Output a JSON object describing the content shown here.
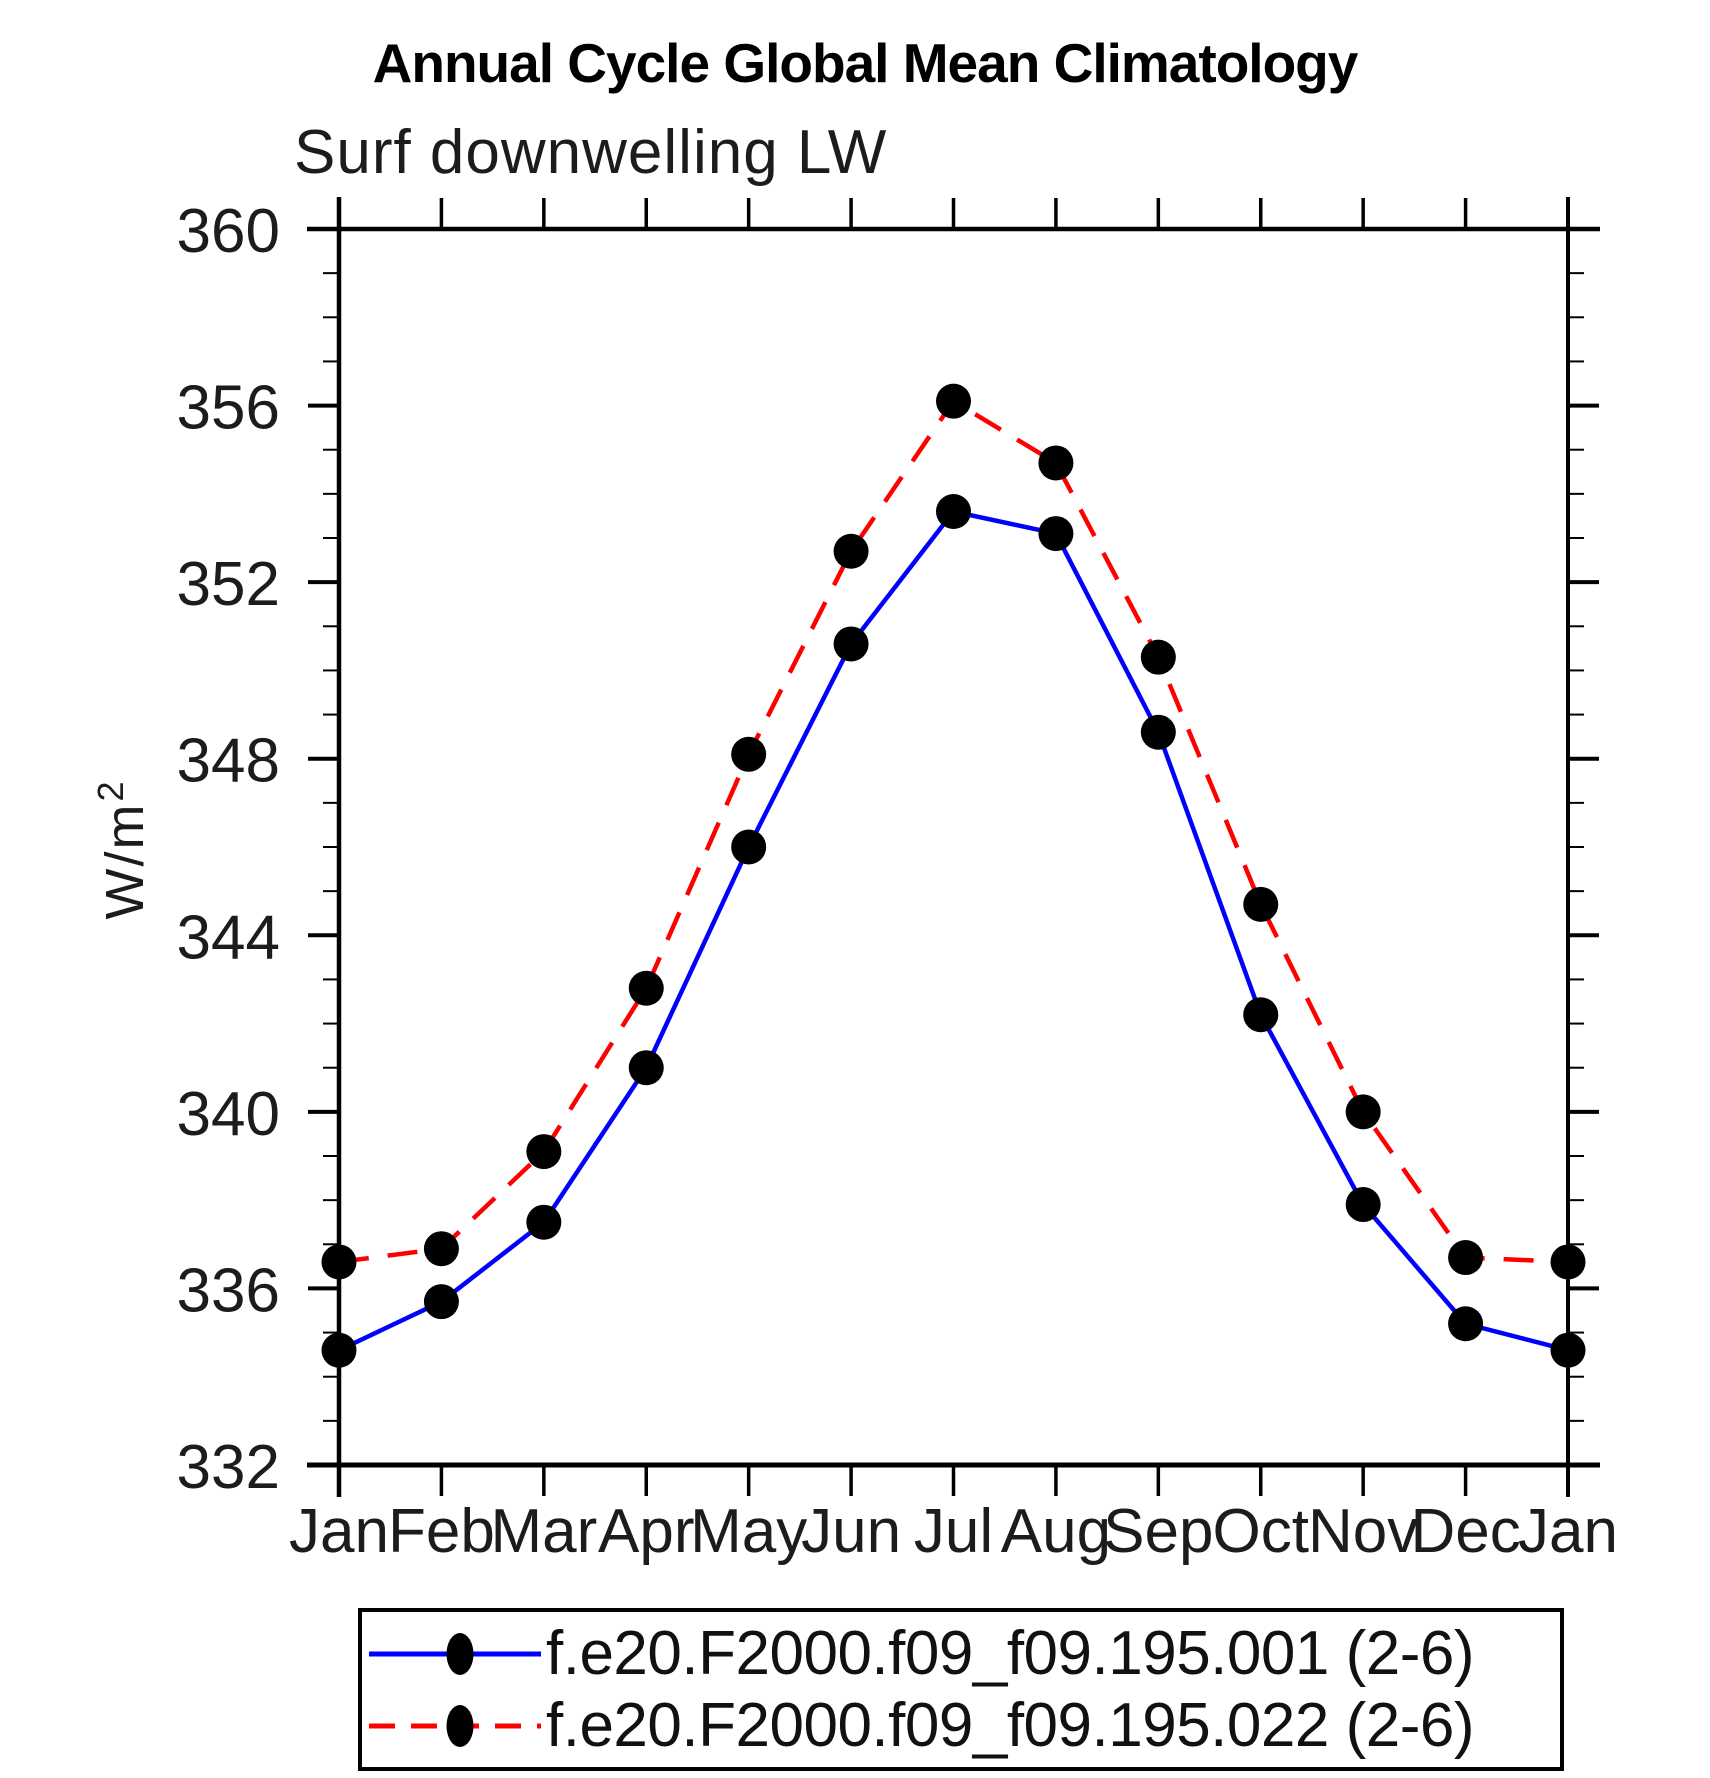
{
  "chart_data": {
    "type": "line",
    "title": "Annual Cycle Global Mean Climatology",
    "subtitle": "Surf downwelling LW",
    "ylabel_base": "W/m",
    "ylabel_sup": "2",
    "x_tick_labels": [
      "Jan",
      "Feb",
      "Mar",
      "Apr",
      "May",
      "Jun",
      "Jul",
      "Aug",
      "Sep",
      "Oct",
      "Nov",
      "Dec",
      "Jan"
    ],
    "y_ticks_major": [
      332,
      336,
      340,
      344,
      348,
      352,
      356,
      360
    ],
    "y_minor_step": 1,
    "ylim": [
      332,
      360
    ],
    "grid": false,
    "legend_position": "bottom",
    "axis_color": "#000000",
    "marker_color": "#000000",
    "series": [
      {
        "name": "f.e20.F2000.f09_f09.195.001 (2-6)",
        "color": "#0000ff",
        "line_style": "solid",
        "values": [
          334.6,
          335.7,
          337.5,
          341.0,
          346.0,
          350.6,
          353.6,
          353.1,
          348.6,
          342.2,
          337.9,
          335.2,
          334.6
        ]
      },
      {
        "name": "f.e20.F2000.f09_f09.195.022 (2-6)",
        "color": "#ff0000",
        "line_style": "dashed",
        "values": [
          336.6,
          336.9,
          339.1,
          342.8,
          348.1,
          352.7,
          356.1,
          354.7,
          350.3,
          344.7,
          340.0,
          336.7,
          336.6
        ]
      }
    ]
  }
}
